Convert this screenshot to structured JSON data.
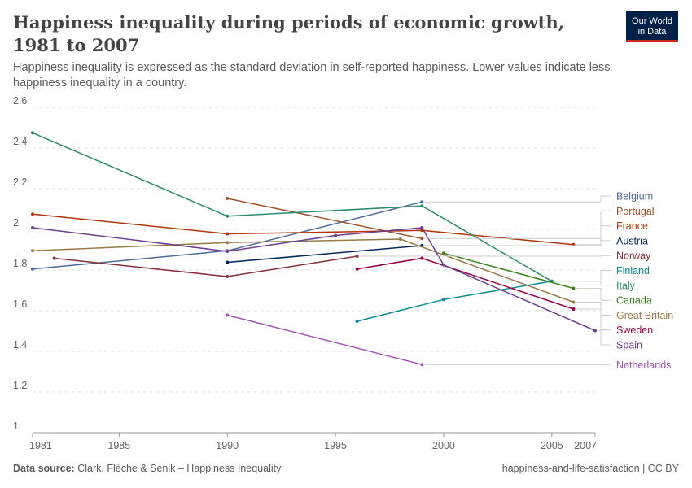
{
  "header": {
    "title": "Happiness inequality during periods of economic growth, 1981 to 2007",
    "subtitle": "Happiness inequality is expressed as the standard deviation in self-reported happiness. Lower values indicate less happiness inequality in a country.",
    "logo_line1": "Our World",
    "logo_line2": "in Data"
  },
  "footer": {
    "source_label": "Data source:",
    "source_text": "Clark, Flèche & Senik – Happiness Inequality",
    "credit": "happiness-and-life-satisfaction | CC BY"
  },
  "colors": {
    "Belgium": "#4c6a9c",
    "Portugal": "#a2522a",
    "France": "#b13507",
    "Austria": "#00295b",
    "Norway": "#883039",
    "Finland": "#0c8a93",
    "Italy": "#2d8a6e",
    "Canada": "#38831f",
    "Great Britain": "#9a7a4a",
    "Sweden": "#970046",
    "Spain": "#6d3e91",
    "Netherlands": "#a453b8"
  },
  "chart_data": {
    "type": "line",
    "xlim": [
      1981,
      2007
    ],
    "ylim": [
      1,
      2.6
    ],
    "x_ticks": [
      1981,
      1985,
      1990,
      1995,
      2000,
      2005,
      2007
    ],
    "y_ticks": [
      1,
      1.2,
      1.4,
      1.6,
      1.8,
      2,
      2.2,
      2.4,
      2.6
    ],
    "grid": true,
    "legend": "right",
    "series": [
      {
        "name": "Belgium",
        "x": [
          1981,
          1990,
          1999
        ],
        "y": [
          1.805,
          1.895,
          2.135
        ]
      },
      {
        "name": "Portugal",
        "x": [
          1990,
          1999
        ],
        "y": [
          2.152,
          1.955
        ]
      },
      {
        "name": "France",
        "x": [
          1981,
          1990,
          1999,
          2006
        ],
        "y": [
          2.075,
          1.978,
          1.995,
          1.925
        ]
      },
      {
        "name": "Austria",
        "x": [
          1990,
          1999
        ],
        "y": [
          1.838,
          1.92
        ]
      },
      {
        "name": "Norway",
        "x": [
          1982,
          1990,
          1996
        ],
        "y": [
          1.858,
          1.768,
          1.868
        ]
      },
      {
        "name": "Finland",
        "x": [
          1996,
          2000,
          2005
        ],
        "y": [
          1.548,
          1.655,
          1.745
        ]
      },
      {
        "name": "Italy",
        "x": [
          1981,
          1990,
          1999,
          2005
        ],
        "y": [
          2.475,
          2.065,
          2.115,
          1.745
        ]
      },
      {
        "name": "Canada",
        "x": [
          2000,
          2006
        ],
        "y": [
          1.883,
          1.71
        ]
      },
      {
        "name": "Great Britain",
        "x": [
          1981,
          1990,
          1998,
          2006
        ],
        "y": [
          1.895,
          1.935,
          1.952,
          1.642
        ]
      },
      {
        "name": "Sweden",
        "x": [
          1996,
          1999,
          2006
        ],
        "y": [
          1.805,
          1.858,
          1.608
        ]
      },
      {
        "name": "Spain",
        "x": [
          1981,
          1990,
          1995,
          1999,
          2000,
          2007
        ],
        "y": [
          2.008,
          1.892,
          1.97,
          2.008,
          1.825,
          1.502
        ]
      },
      {
        "name": "Netherlands",
        "x": [
          1990,
          1999
        ],
        "y": [
          1.578,
          1.335
        ]
      }
    ]
  }
}
